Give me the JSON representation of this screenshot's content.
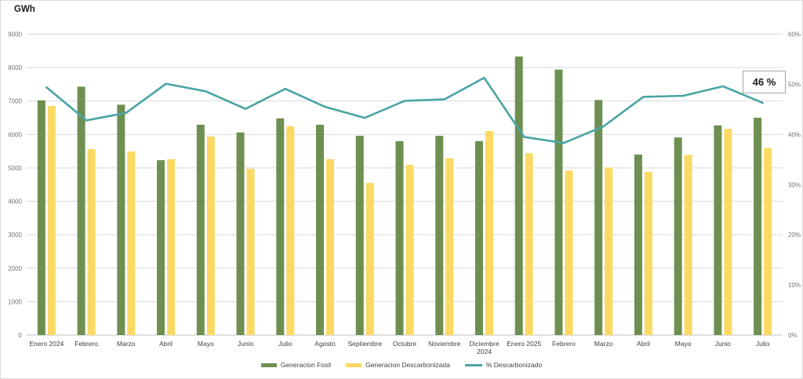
{
  "chart_data": {
    "type": "bar",
    "title": "GWh",
    "categories": [
      "Enero 2024",
      "Febrero",
      "Marzo",
      "Abril",
      "Mayo",
      "Junio",
      "Julio",
      "Agosto",
      "Septiembre",
      "Octubre",
      "Noviembre",
      "Diciembre\n2024",
      "Enero 2025",
      "Febrero",
      "Marzo",
      "Abril",
      "Mayo",
      "Junio",
      "Julio"
    ],
    "series": [
      {
        "name": "Generacion Fosil",
        "type": "bar",
        "color": "#6e8f51",
        "values": [
          7020,
          7430,
          6890,
          5230,
          6290,
          6060,
          6480,
          6290,
          5960,
          5800,
          5960,
          5800,
          8330,
          7940,
          7030,
          5400,
          5910,
          6270,
          6500
        ]
      },
      {
        "name": "Generacion Descarbonizada",
        "type": "bar",
        "color": "#fbd963",
        "values": [
          6850,
          5560,
          5490,
          5260,
          5940,
          4970,
          6250,
          5260,
          4550,
          5090,
          5290,
          6100,
          5440,
          4920,
          5010,
          4880,
          5390,
          6170,
          5600
        ]
      },
      {
        "name": "% Descarbonizado",
        "type": "line",
        "axis": "right",
        "color": "#4aa4a4",
        "values": [
          49.4,
          42.8,
          44.3,
          50.1,
          48.6,
          45.1,
          49.1,
          45.5,
          43.3,
          46.7,
          47.0,
          51.3,
          39.5,
          38.3,
          41.6,
          47.5,
          47.7,
          49.6,
          46.3
        ]
      }
    ],
    "left_axis": {
      "unit": "GWh",
      "min": 0,
      "max": 9000,
      "step": 1000
    },
    "right_axis": {
      "min": 0,
      "max": 60,
      "step": 10,
      "suffix": "%"
    },
    "annotation": {
      "text": "46 %",
      "category_index": 18
    },
    "legend_position": "bottom",
    "grid": true,
    "colors": {
      "gridline": "#d9d9d9",
      "axis_line": "#bfbfbf",
      "tick_text": "#737373",
      "category_text": "#404040",
      "background": "#ffffff"
    }
  }
}
